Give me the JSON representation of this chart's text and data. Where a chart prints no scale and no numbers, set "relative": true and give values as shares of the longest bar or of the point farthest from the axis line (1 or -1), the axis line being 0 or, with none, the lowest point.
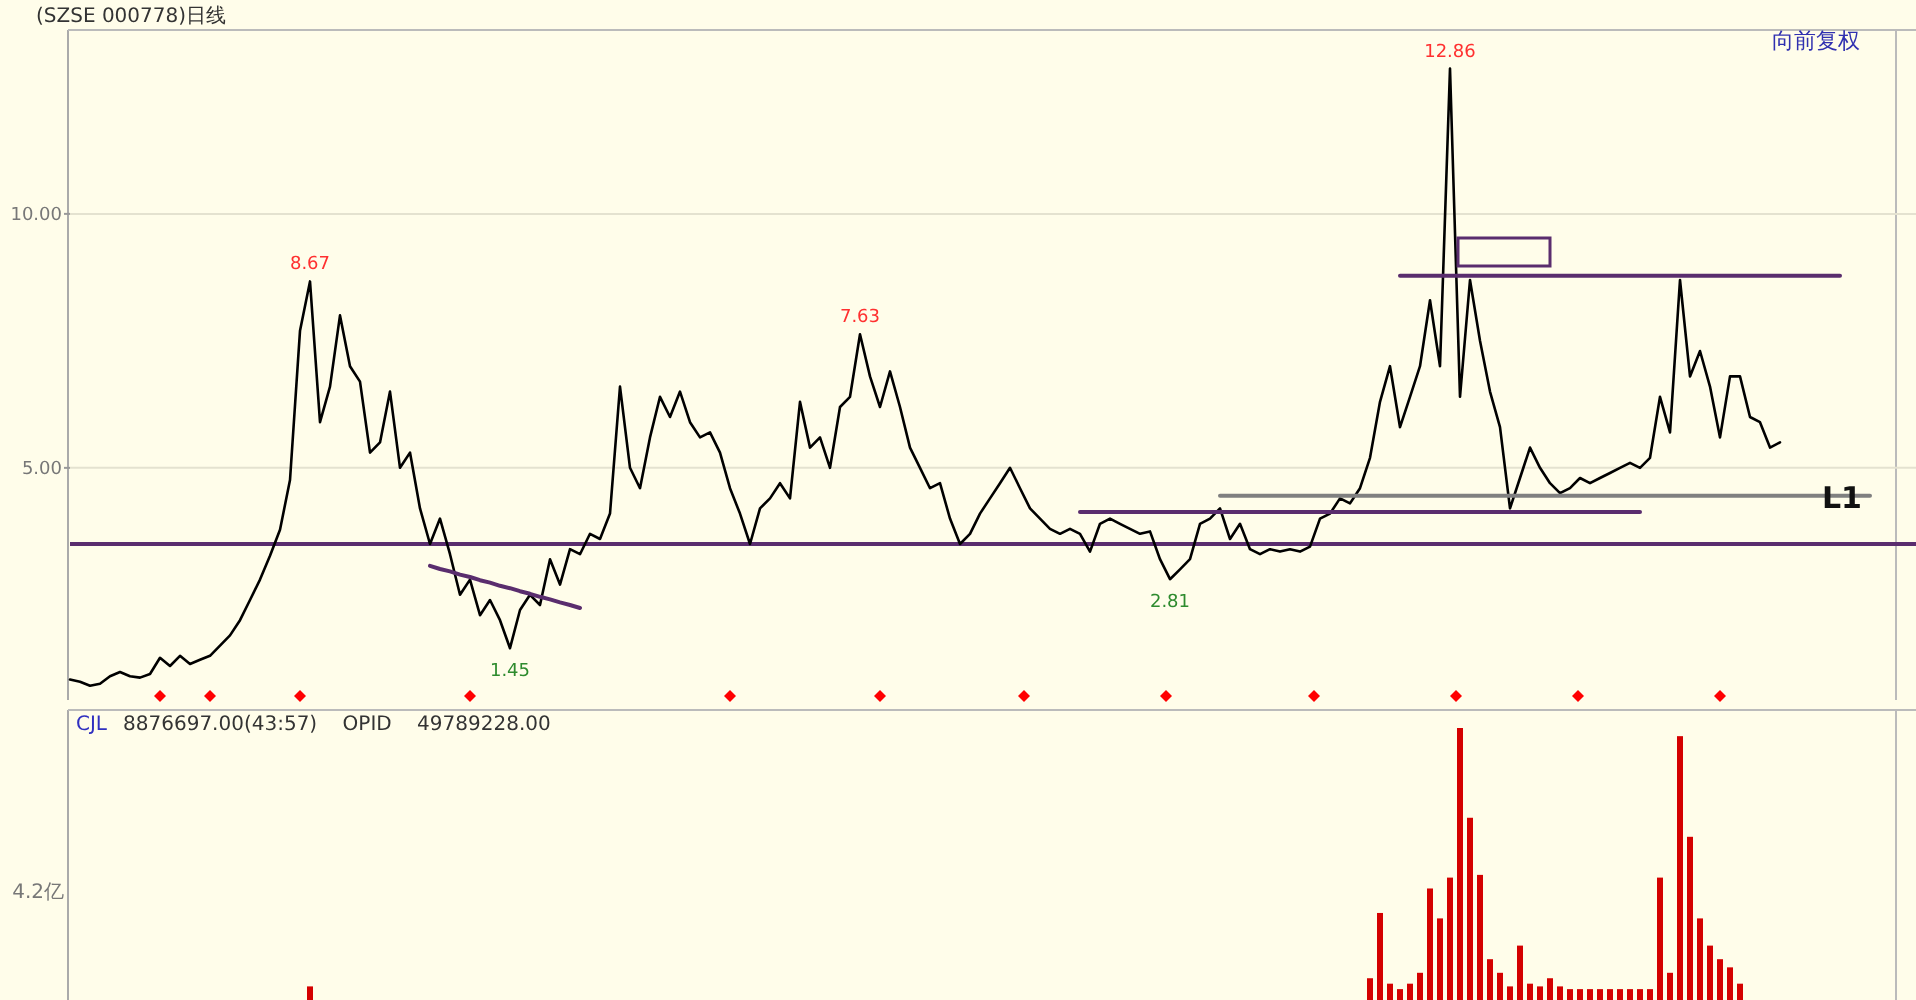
{
  "chart_data": [
    {
      "type": "line",
      "title": "(SZSE 000778)日线",
      "annotations": [
        "向前复权",
        {
          "text": "8.67",
          "y": 8.67
        },
        {
          "text": "1.45",
          "y": 1.45
        },
        {
          "text": "7.63",
          "y": 7.63
        },
        {
          "text": "2.81",
          "y": 2.81
        },
        {
          "text": "12.86",
          "y": 12.86
        }
      ],
      "categories": [
        null,
        null,
        null,
        null,
        null,
        null,
        null,
        null,
        null,
        null,
        null,
        null,
        null,
        null,
        null,
        null,
        null,
        null,
        null,
        null,
        null,
        null,
        null,
        null,
        null,
        null,
        null,
        null,
        null,
        null,
        null,
        null,
        null,
        null,
        null,
        null,
        null,
        null,
        null,
        null,
        null,
        null,
        null,
        null,
        null,
        null,
        null,
        null,
        null,
        null,
        null,
        null,
        null,
        null,
        null,
        null,
        null,
        null,
        null,
        null,
        null,
        null,
        null,
        null,
        null,
        null,
        null,
        null,
        null,
        null,
        null,
        null,
        null,
        null,
        null,
        null,
        null,
        null,
        null,
        null,
        null,
        null,
        null,
        null,
        null,
        null,
        null,
        null,
        null,
        null,
        null,
        null,
        null,
        null,
        null,
        null,
        null,
        null,
        null,
        null,
        null,
        null,
        null,
        null,
        null,
        null,
        null,
        null,
        null,
        null,
        null,
        null,
        null,
        null,
        null,
        null,
        null,
        null,
        null,
        null,
        null,
        null,
        null,
        null,
        null,
        null,
        null,
        null,
        null,
        null,
        null,
        null,
        null,
        null,
        null,
        null,
        null,
        null,
        null,
        null,
        null,
        null,
        null,
        null,
        null,
        null,
        null,
        null,
        null,
        null,
        null,
        null,
        null,
        null,
        null,
        null,
        null,
        null,
        null,
        null,
        null,
        null,
        null,
        null,
        null,
        null,
        null,
        null,
        null,
        null,
        null,
        null,
        null,
        null,
        null,
        null,
        null,
        null,
        null,
        null,
        null
      ],
      "ylim": [
        0.43,
        13.62
      ],
      "yticks": [
        {
          "value": 10,
          "label": "10.00"
        },
        {
          "value": 5,
          "label": "5.00"
        }
      ],
      "grid": "y",
      "ref_lines": [
        {
          "axis": "y",
          "value": 3.5,
          "color": "#5a2d6e"
        }
      ],
      "series": [
        {
          "type": "line",
          "color": "#000000",
          "values": [
            0.83,
            0.79,
            0.71,
            0.75,
            0.9,
            0.98,
            0.9,
            0.87,
            0.94,
            1.26,
            1.1,
            1.3,
            1.14,
            1.22,
            1.3,
            1.5,
            1.7,
            2.0,
            2.4,
            2.8,
            3.27,
            3.78,
            4.76,
            7.7,
            8.67,
            5.9,
            6.6,
            8.0,
            7.0,
            6.7,
            5.3,
            5.5,
            6.5,
            5.0,
            5.3,
            4.2,
            3.5,
            4.0,
            3.3,
            2.5,
            2.8,
            2.1,
            2.4,
            2.0,
            1.45,
            2.2,
            2.5,
            2.3,
            3.2,
            2.7,
            3.4,
            3.3,
            3.7,
            3.6,
            4.1,
            6.6,
            5.0,
            4.6,
            5.6,
            6.4,
            6.0,
            6.5,
            5.9,
            5.6,
            5.7,
            5.3,
            4.6,
            4.1,
            3.5,
            4.2,
            4.4,
            4.7,
            4.4,
            6.3,
            5.4,
            5.6,
            5.0,
            6.2,
            6.4,
            7.63,
            6.8,
            6.2,
            6.9,
            6.2,
            5.4,
            5.0,
            4.6,
            4.7,
            4.0,
            3.5,
            3.7,
            4.1,
            4.4,
            4.7,
            5.0,
            4.6,
            4.2,
            4.0,
            3.8,
            3.7,
            3.8,
            3.7,
            3.35,
            3.9,
            4.0,
            3.9,
            3.8,
            3.7,
            3.75,
            3.2,
            2.81,
            3.0,
            3.2,
            3.9,
            4.0,
            4.2,
            3.6,
            3.9,
            3.4,
            3.3,
            3.4,
            3.35,
            3.4,
            3.35,
            3.45,
            4.0,
            4.1,
            4.4,
            4.3,
            4.6,
            5.2,
            6.3,
            7.0,
            5.8,
            6.4,
            7.0,
            8.3,
            7.0,
            12.86,
            6.4,
            8.7,
            7.5,
            6.5,
            5.8,
            4.2,
            4.8,
            5.4,
            5.0,
            4.7,
            4.5,
            4.6,
            4.8,
            4.7,
            4.8,
            4.9,
            5.0,
            5.1,
            5.0,
            5.2,
            6.4,
            5.7,
            8.7,
            6.8,
            7.3,
            6.6,
            5.6,
            6.8,
            6.8,
            6.0,
            5.9,
            5.4,
            5.5,
            null,
            null,
            null,
            null,
            null,
            null,
            null,
            null,
            null
          ]
        },
        {
          "type": "line",
          "color": "#5a2d6e",
          "values": [
            null,
            null,
            null,
            null,
            null,
            null,
            null,
            null,
            null,
            null,
            null,
            null,
            null,
            null,
            null,
            null,
            null,
            null,
            null,
            null,
            null,
            null,
            null,
            null,
            null,
            null,
            null,
            null,
            null,
            null,
            null,
            null,
            null,
            null,
            null,
            null,
            null,
            null,
            null,
            null,
            null,
            null,
            null,
            null,
            null,
            null,
            null,
            null,
            null,
            null,
            null,
            null,
            null,
            null,
            null,
            null,
            null,
            null,
            null,
            null,
            null,
            null,
            null,
            null,
            null,
            null,
            null,
            null,
            null,
            null,
            null,
            null,
            null,
            null,
            null,
            null,
            null,
            null,
            null,
            null,
            null,
            null,
            null,
            null,
            null,
            null,
            null,
            null,
            null,
            null,
            null,
            null,
            null,
            null,
            null,
            null,
            null,
            null,
            null,
            null,
            null,
            null,
            null,
            null,
            null,
            null,
            null,
            null,
            null,
            null,
            null,
            null,
            null,
            null,
            null,
            null,
            null,
            null,
            null,
            null,
            null,
            null,
            null,
            null,
            null,
            null,
            null,
            null,
            null,
            null,
            null,
            null,
            null,
            8.78,
            8.78,
            8.78,
            8.78,
            8.78,
            8.78,
            8.78,
            8.78,
            8.78,
            8.78,
            8.78,
            8.78,
            8.78,
            8.78,
            8.78,
            8.78,
            8.78,
            8.78,
            8.78,
            8.78,
            8.78,
            8.78,
            8.78,
            8.78,
            8.78,
            8.78,
            8.78,
            8.78,
            8.78,
            8.78,
            8.78,
            8.78,
            8.78,
            8.78,
            8.78,
            8.78,
            8.78,
            8.78,
            8.78,
            8.78,
            8.78,
            8.78,
            8.78,
            8.78,
            8.78,
            null,
            null,
            null
          ]
        },
        {
          "type": "line",
          "color": "#5a2d6e",
          "values": [
            null,
            null,
            null,
            null,
            null,
            null,
            null,
            null,
            null,
            null,
            null,
            null,
            null,
            null,
            null,
            null,
            null,
            null,
            null,
            null,
            null,
            null,
            null,
            null,
            null,
            null,
            null,
            null,
            null,
            null,
            null,
            null,
            null,
            null,
            null,
            null,
            null,
            null,
            null,
            null,
            null,
            null,
            null,
            null,
            null,
            null,
            null,
            null,
            null,
            null,
            null,
            null,
            null,
            null,
            null,
            null,
            null,
            null,
            null,
            null,
            null,
            null,
            null,
            null,
            null,
            null,
            null,
            null,
            null,
            null,
            null,
            null,
            null,
            null,
            null,
            null,
            null,
            null,
            null,
            null,
            null,
            null,
            null,
            null,
            null,
            null,
            null,
            null,
            null,
            null,
            null,
            null,
            null,
            null,
            null,
            null,
            null,
            null,
            null,
            null,
            null,
            4.13,
            4.13,
            4.13,
            4.13,
            4.13,
            4.13,
            4.13,
            4.13,
            4.13,
            4.13,
            4.13,
            4.13,
            4.13,
            4.13,
            4.13,
            4.13,
            4.13,
            4.13,
            4.13,
            4.13,
            4.13,
            4.13,
            4.13,
            4.13,
            4.13,
            4.13,
            4.13,
            4.13,
            4.13,
            4.13,
            4.13,
            4.13,
            4.13,
            4.13,
            4.13,
            4.13,
            4.13,
            4.13,
            4.13,
            4.13,
            4.13,
            4.13,
            4.13,
            4.13,
            4.13,
            4.13,
            4.13,
            4.13,
            4.13,
            4.13,
            4.13,
            4.13,
            4.13,
            4.13,
            4.13,
            4.13,
            4.13,
            null,
            null,
            null,
            null,
            null,
            null,
            null,
            null,
            null,
            null,
            null,
            null,
            null,
            null,
            null,
            null,
            null,
            null,
            null,
            null,
            null,
            null,
            null
          ]
        },
        {
          "type": "line",
          "name": "L1",
          "color": "#808080",
          "values": [
            null,
            null,
            null,
            null,
            null,
            null,
            null,
            null,
            null,
            null,
            null,
            null,
            null,
            null,
            null,
            null,
            null,
            null,
            null,
            null,
            null,
            null,
            null,
            null,
            null,
            null,
            null,
            null,
            null,
            null,
            null,
            null,
            null,
            null,
            null,
            null,
            null,
            null,
            null,
            null,
            null,
            null,
            null,
            null,
            null,
            null,
            null,
            null,
            null,
            null,
            null,
            null,
            null,
            null,
            null,
            null,
            null,
            null,
            null,
            null,
            null,
            null,
            null,
            null,
            null,
            null,
            null,
            null,
            null,
            null,
            null,
            null,
            null,
            null,
            null,
            null,
            null,
            null,
            null,
            null,
            null,
            null,
            null,
            null,
            null,
            null,
            null,
            null,
            null,
            null,
            null,
            null,
            null,
            null,
            null,
            null,
            null,
            null,
            null,
            null,
            null,
            null,
            null,
            null,
            null,
            null,
            null,
            null,
            null,
            null,
            null,
            null,
            null,
            null,
            null,
            4.45,
            4.45,
            4.45,
            4.45,
            4.45,
            4.45,
            4.45,
            4.45,
            4.45,
            4.45,
            4.45,
            4.45,
            4.45,
            4.45,
            4.45,
            4.45,
            4.45,
            4.45,
            4.45,
            4.45,
            4.45,
            4.45,
            4.45,
            4.45,
            4.45,
            4.45,
            4.45,
            4.45,
            4.45,
            4.45,
            4.45,
            4.45,
            4.45,
            4.45,
            4.45,
            4.45,
            4.45,
            4.45,
            4.45,
            4.45,
            4.45,
            4.45,
            4.45,
            4.45,
            4.45,
            4.45,
            4.45,
            4.45,
            4.45,
            4.45,
            4.45,
            4.45,
            4.45,
            4.45,
            4.45,
            4.45,
            4.45,
            4.45,
            4.45,
            4.45,
            4.45,
            4.45,
            4.45,
            4.45,
            4.45,
            4.45
          ]
        },
        {
          "type": "line",
          "color": "#5a2d6e",
          "values": [
            null,
            null,
            null,
            null,
            null,
            null,
            null,
            null,
            null,
            null,
            null,
            null,
            null,
            null,
            null,
            null,
            null,
            null,
            null,
            null,
            null,
            null,
            null,
            null,
            null,
            null,
            null,
            null,
            null,
            null,
            null,
            null,
            null,
            null,
            null,
            null,
            3.07,
            3.01,
            2.96,
            2.9,
            2.85,
            2.79,
            2.74,
            2.68,
            2.63,
            2.57,
            2.52,
            2.46,
            2.41,
            2.35,
            2.3,
            2.24,
            null,
            null,
            null,
            null,
            null,
            null,
            null,
            null,
            null,
            null,
            null,
            null,
            null,
            null,
            null,
            null,
            null,
            null,
            null,
            null,
            null,
            null,
            null,
            null,
            null,
            null,
            null,
            null,
            null,
            null,
            null,
            null,
            null,
            null,
            null,
            null,
            null,
            null,
            null,
            null,
            null,
            null,
            null,
            null,
            null,
            null,
            null,
            null,
            null,
            null,
            null,
            null,
            null,
            null,
            null,
            null,
            null,
            null,
            null,
            null,
            null,
            null,
            null,
            null,
            null,
            null,
            null,
            null,
            null,
            null,
            null,
            null,
            null,
            null,
            null,
            null,
            null,
            null,
            null,
            null,
            null,
            null,
            null,
            null,
            null,
            null,
            null,
            null,
            null,
            null,
            null,
            null,
            null,
            null,
            null,
            null,
            null,
            null,
            null,
            null,
            null,
            null,
            null,
            null,
            null,
            null,
            null,
            null,
            null,
            null,
            null,
            null,
            null,
            null,
            null,
            null,
            null,
            null,
            null,
            null,
            null,
            null,
            null,
            null,
            null,
            null,
            null,
            null,
            null
          ]
        }
      ]
    },
    {
      "type": "bar",
      "title": "CJL",
      "subtitle": "8876697.00(43:57)    OPID    49789228.00",
      "annotations": [
        "4.2亿"
      ],
      "relative": true,
      "color": "#d40000",
      "categories": [
        null,
        null,
        null,
        null,
        null,
        null,
        null,
        null,
        null,
        null,
        null,
        null,
        null,
        null,
        null,
        null,
        null,
        null,
        null,
        null,
        null,
        null,
        null,
        null,
        null,
        null,
        null,
        null,
        null,
        null,
        null,
        null,
        null,
        null,
        null,
        null,
        null,
        null,
        null,
        null,
        null,
        null,
        null,
        null,
        null,
        null,
        null,
        null,
        null,
        null,
        null,
        null,
        null,
        null,
        null,
        null,
        null,
        null,
        null,
        null,
        null,
        null,
        null,
        null,
        null,
        null,
        null,
        null,
        null,
        null,
        null,
        null,
        null,
        null,
        null,
        null,
        null,
        null,
        null,
        null,
        null,
        null,
        null,
        null,
        null,
        null,
        null,
        null,
        null,
        null,
        null,
        null,
        null,
        null,
        null,
        null,
        null,
        null,
        null,
        null,
        null,
        null,
        null,
        null,
        null,
        null,
        null,
        null,
        null,
        null,
        null,
        null,
        null,
        null,
        null,
        null,
        null,
        null,
        null,
        null,
        null,
        null,
        null,
        null,
        null,
        null,
        null,
        null,
        null,
        null,
        null,
        null,
        null,
        null,
        null,
        null,
        null,
        null,
        null,
        null,
        null,
        null,
        null,
        null,
        null,
        null,
        null,
        null,
        null,
        null,
        null,
        null,
        null,
        null,
        null,
        null,
        null,
        null,
        null,
        null,
        null,
        null,
        null,
        null,
        null,
        null,
        null,
        null,
        null,
        null,
        null,
        null,
        null,
        null,
        null,
        null,
        null,
        null,
        null,
        null,
        null
      ],
      "values": [
        null,
        null,
        null,
        null,
        null,
        null,
        null,
        null,
        null,
        null,
        null,
        null,
        null,
        null,
        null,
        null,
        null,
        null,
        null,
        null,
        null,
        null,
        null,
        null,
        0.05,
        null,
        null,
        null,
        null,
        null,
        null,
        null,
        null,
        null,
        null,
        null,
        null,
        null,
        null,
        null,
        null,
        null,
        null,
        null,
        null,
        null,
        null,
        null,
        null,
        null,
        null,
        null,
        null,
        null,
        null,
        null,
        null,
        null,
        null,
        null,
        null,
        null,
        null,
        null,
        null,
        null,
        null,
        null,
        null,
        null,
        null,
        null,
        null,
        null,
        null,
        null,
        null,
        null,
        null,
        null,
        null,
        null,
        null,
        null,
        null,
        null,
        null,
        null,
        null,
        null,
        null,
        null,
        null,
        null,
        null,
        null,
        null,
        null,
        null,
        null,
        null,
        null,
        null,
        null,
        null,
        null,
        null,
        null,
        null,
        null,
        null,
        null,
        null,
        null,
        null,
        null,
        null,
        null,
        null,
        null,
        null,
        null,
        null,
        null,
        null,
        null,
        null,
        null,
        null,
        null,
        0.08,
        0.32,
        0.06,
        0.04,
        0.06,
        0.1,
        0.41,
        0.3,
        0.45,
        1.0,
        0.67,
        0.46,
        0.15,
        0.1,
        0.05,
        0.2,
        0.06,
        0.05,
        0.08,
        0.05,
        0.04,
        0.04,
        0.04,
        0.04,
        0.04,
        0.04,
        0.04,
        0.04,
        0.04,
        0.45,
        0.1,
        0.97,
        0.6,
        0.3,
        0.2,
        0.15,
        0.12,
        0.06,
        null,
        null,
        null,
        null,
        null,
        null,
        null,
        null,
        null,
        null,
        null,
        null,
        null
      ]
    }
  ]
}
